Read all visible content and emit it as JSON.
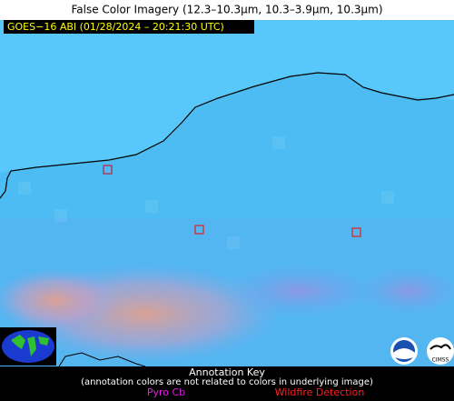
{
  "header": {
    "title": "False Color Imagery (12.3–10.3µm, 10.3–3.9µm, 10.3µm)"
  },
  "image": {
    "timestamp_label": "GOES−16 ABI (01/28/2024 – 20:21:30 UTC)"
  },
  "logos": {
    "cimss": "CIMSS"
  },
  "annotation_key": {
    "title": "Annotation Key",
    "note": "(annotation colors are not related to colors in underlying image)",
    "items": [
      {
        "label": "Pyro Cb"
      },
      {
        "label": "Wildfire Detection"
      }
    ]
  }
}
